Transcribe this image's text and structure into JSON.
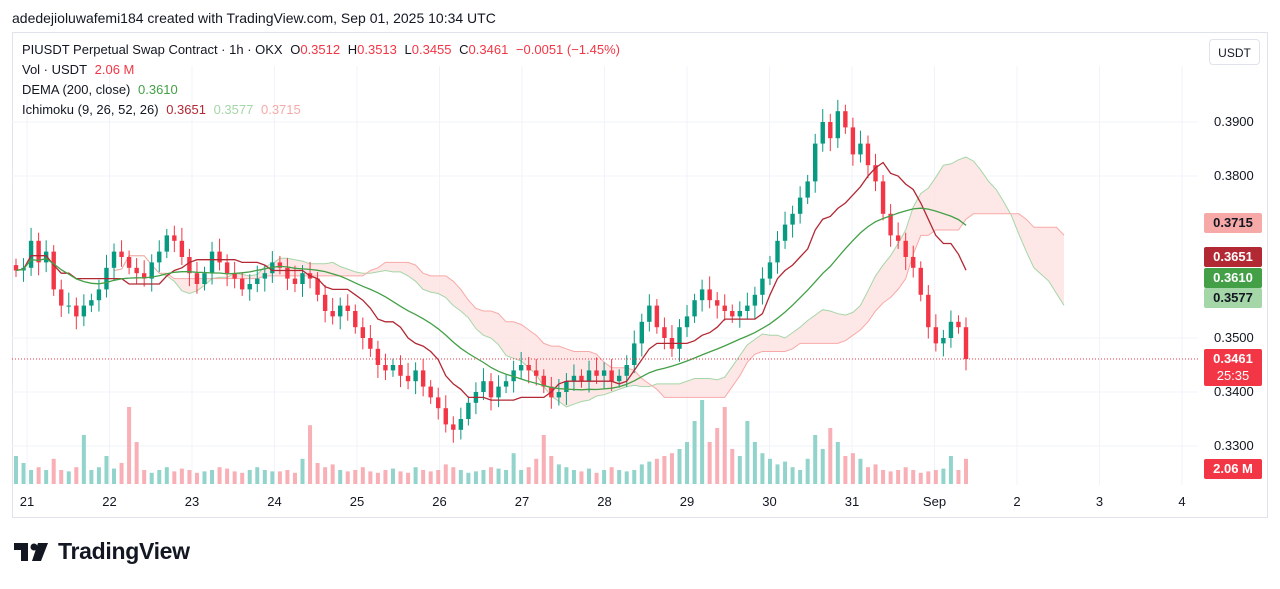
{
  "caption": "adedejioluwafemi184 created with TradingView.com, Sep 01, 2025 10:34 UTC",
  "currency_button": "USDT",
  "brand": "TradingView",
  "legend": {
    "symbol": "PIUSDT Perpetual Swap Contract · 1h · OKX",
    "o_label": "O",
    "o_value": "0.3512",
    "h_label": "H",
    "h_value": "0.3513",
    "l_label": "L",
    "l_value": "0.3455",
    "c_label": "C",
    "c_value": "0.3461",
    "change": "−0.0051 (−1.45%)",
    "vol_label": "Vol · USDT",
    "vol_value": "2.06 M",
    "dema_label": "DEMA (200, close)",
    "dema_value": "0.3610",
    "ichi_label": "Ichimoku (9, 26, 52, 26)",
    "ichi_v1": "0.3651",
    "ichi_v2": "0.3577",
    "ichi_v3": "0.3715"
  },
  "price_tags": [
    {
      "value": "0.3715",
      "color": "#f7a9a7",
      "text_color": "#131722"
    },
    {
      "value": "0.3651",
      "color": "#b22833",
      "text_color": "#ffffff"
    },
    {
      "value": "0.3610",
      "color": "#43a047",
      "text_color": "#ffffff"
    },
    {
      "value": "0.3577",
      "color": "#a5d6a7",
      "text_color": "#131722"
    },
    {
      "value": "0.3461",
      "color": "#f23645",
      "text_color": "#ffffff"
    }
  ],
  "countdown": "25:35",
  "volume_tag": "2.06 M",
  "colors": {
    "up": "#089981",
    "down": "#f23645",
    "dema": "#43a047",
    "base": "#b22833",
    "span_a": "#a5d6a7",
    "span_b": "#f7a9a7"
  },
  "chart_data": {
    "type": "candlestick",
    "x_ticks": [
      "21",
      "22",
      "23",
      "24",
      "25",
      "26",
      "27",
      "28",
      "29",
      "30",
      "31",
      "Sep",
      "2",
      "3",
      "4"
    ],
    "y_ticks": [
      "0.3900",
      "0.3800",
      "0.3500",
      "0.3400",
      "0.3300"
    ],
    "ylim": [
      0.328,
      0.3962
    ],
    "series_values": {
      "base_line": 0.3651,
      "dema": 0.361,
      "span_a": 0.3577,
      "span_b": 0.3715
    },
    "last_price": 0.3461,
    "approx_daily_close": [
      {
        "x": "21",
        "close": 0.36
      },
      {
        "x": "22",
        "close": 0.358
      },
      {
        "x": "23",
        "close": 0.364
      },
      {
        "x": "24",
        "close": 0.359
      },
      {
        "x": "25",
        "close": 0.347
      },
      {
        "x": "26",
        "close": 0.335
      },
      {
        "x": "27",
        "close": 0.343
      },
      {
        "x": "28",
        "close": 0.344
      },
      {
        "x": "29",
        "close": 0.357
      },
      {
        "x": "30",
        "close": 0.368
      },
      {
        "x": "31",
        "close": 0.387
      },
      {
        "x": "Sep",
        "close": 0.366
      },
      {
        "x": "Sep",
        "close": 0.3461
      }
    ],
    "candles_path": [
      0.3625,
      0.363,
      0.368,
      0.364,
      0.366,
      0.359,
      0.356,
      0.356,
      0.354,
      0.356,
      0.357,
      0.359,
      0.363,
      0.366,
      0.365,
      0.363,
      0.362,
      0.361,
      0.364,
      0.366,
      0.369,
      0.368,
      0.365,
      0.362,
      0.36,
      0.362,
      0.366,
      0.364,
      0.362,
      0.361,
      0.359,
      0.36,
      0.361,
      0.362,
      0.364,
      0.363,
      0.361,
      0.36,
      0.362,
      0.361,
      0.358,
      0.355,
      0.354,
      0.356,
      0.355,
      0.352,
      0.35,
      0.348,
      0.345,
      0.344,
      0.345,
      0.343,
      0.342,
      0.344,
      0.341,
      0.339,
      0.337,
      0.334,
      0.333,
      0.335,
      0.338,
      0.34,
      0.342,
      0.339,
      0.341,
      0.342,
      0.344,
      0.345,
      0.344,
      0.343,
      0.341,
      0.339,
      0.34,
      0.342,
      0.343,
      0.342,
      0.344,
      0.343,
      0.344,
      0.342,
      0.343,
      0.345,
      0.349,
      0.353,
      0.356,
      0.352,
      0.35,
      0.348,
      0.352,
      0.354,
      0.357,
      0.359,
      0.357,
      0.356,
      0.355,
      0.354,
      0.355,
      0.356,
      0.358,
      0.361,
      0.364,
      0.368,
      0.371,
      0.373,
      0.376,
      0.379,
      0.386,
      0.39,
      0.387,
      0.392,
      0.389,
      0.384,
      0.386,
      0.382,
      0.379,
      0.373,
      0.369,
      0.368,
      0.365,
      0.363,
      0.358,
      0.352,
      0.349,
      0.35,
      0.353,
      0.352,
      0.3461
    ]
  },
  "volume_data": [
    0.2,
    0.15,
    0.1,
    0.12,
    0.1,
    0.18,
    0.1,
    0.09,
    0.12,
    0.35,
    0.1,
    0.12,
    0.2,
    0.11,
    0.15,
    0.55,
    0.3,
    0.1,
    0.08,
    0.1,
    0.12,
    0.09,
    0.11,
    0.1,
    0.08,
    0.09,
    0.1,
    0.12,
    0.11,
    0.09,
    0.08,
    0.1,
    0.12,
    0.1,
    0.09,
    0.09,
    0.1,
    0.08,
    0.18,
    0.42,
    0.15,
    0.12,
    0.14,
    0.1,
    0.09,
    0.1,
    0.12,
    0.09,
    0.08,
    0.1,
    0.11,
    0.09,
    0.08,
    0.12,
    0.1,
    0.09,
    0.1,
    0.14,
    0.12,
    0.1,
    0.08,
    0.09,
    0.1,
    0.12,
    0.11,
    0.1,
    0.22,
    0.1,
    0.12,
    0.18,
    0.35,
    0.2,
    0.14,
    0.12,
    0.1,
    0.09,
    0.11,
    0.08,
    0.1,
    0.12,
    0.1,
    0.09,
    0.1,
    0.14,
    0.16,
    0.18,
    0.2,
    0.22,
    0.25,
    0.3,
    0.45,
    0.6,
    0.3,
    0.4,
    0.55,
    0.25,
    0.2,
    0.45,
    0.3,
    0.22,
    0.18,
    0.14,
    0.16,
    0.12,
    0.1,
    0.18,
    0.35,
    0.25,
    0.4,
    0.3,
    0.2,
    0.22,
    0.18,
    0.12,
    0.14,
    0.1,
    0.09,
    0.1,
    0.12,
    0.1,
    0.08,
    0.09,
    0.1,
    0.11,
    0.2,
    0.1,
    0.18
  ]
}
